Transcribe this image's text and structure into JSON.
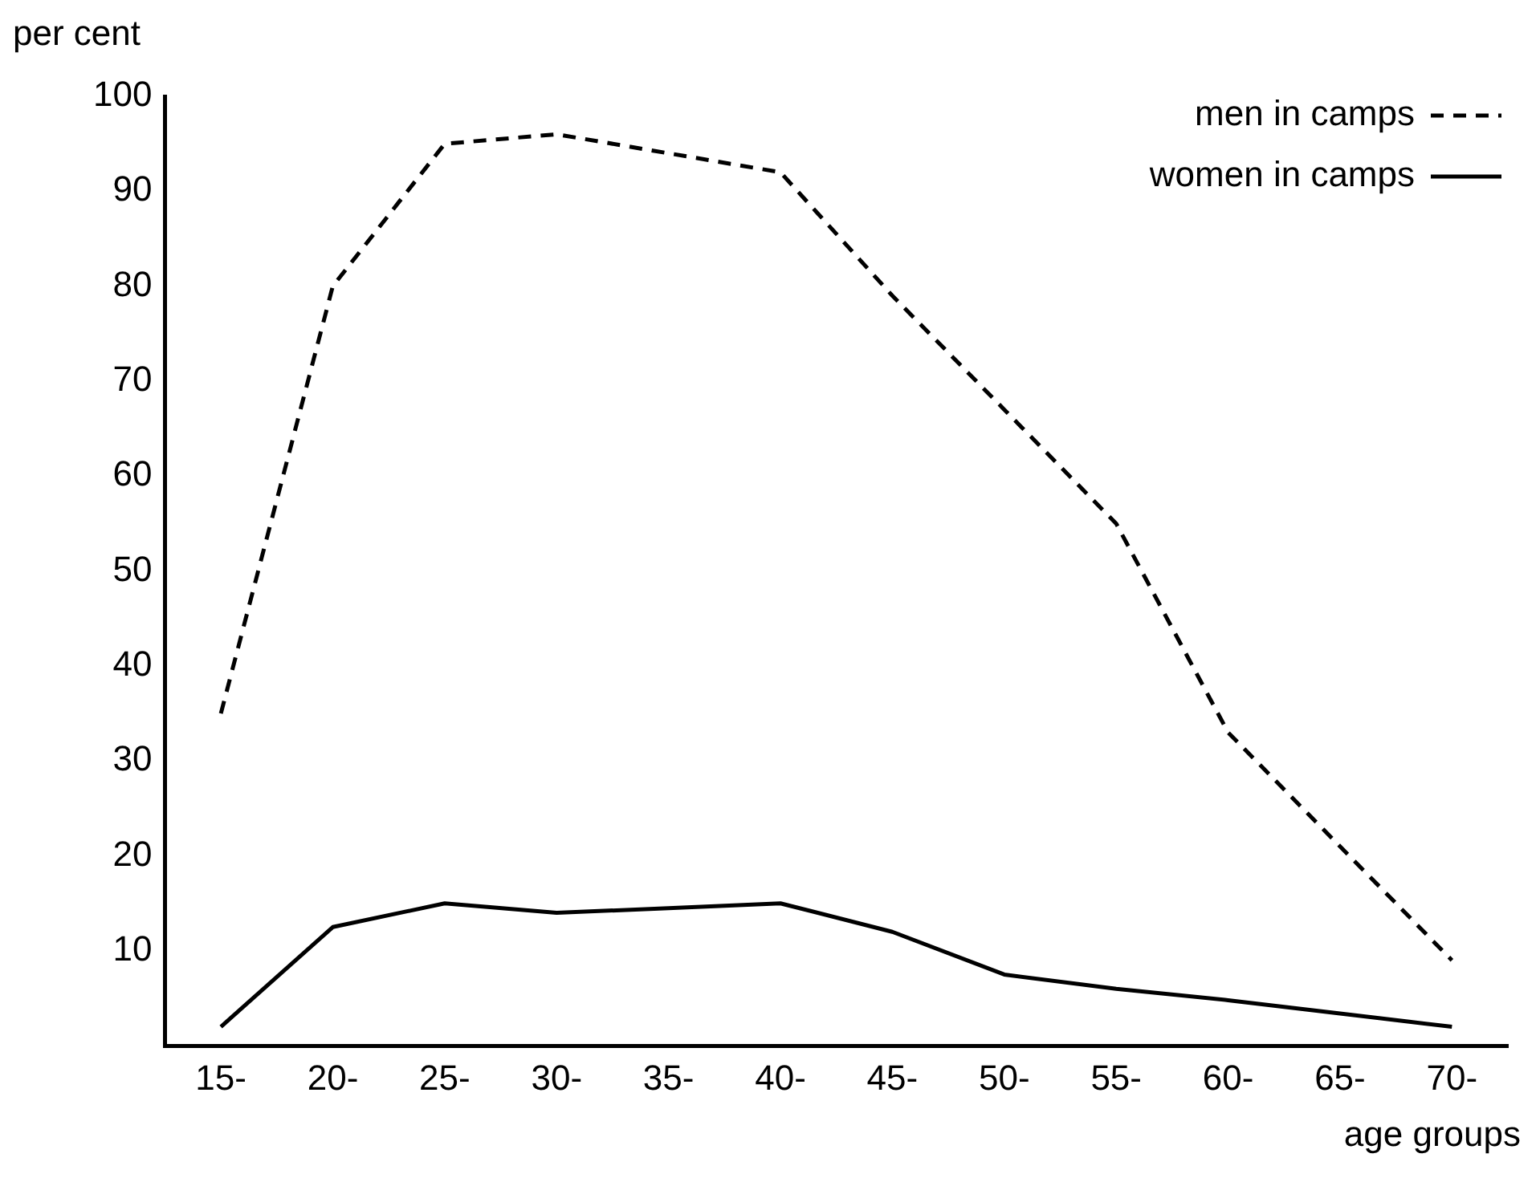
{
  "chart_data": {
    "type": "line",
    "xlabel": "age groups",
    "ylabel": "per cent",
    "categories": [
      "15-",
      "20-",
      "25-",
      "30-",
      "35-",
      "40-",
      "45-",
      "50-",
      "55-",
      "60-",
      "65-",
      "70-"
    ],
    "series": [
      {
        "name": "men in camps",
        "color": "#000000",
        "line_style": "dashed",
        "values": [
          35,
          80,
          95,
          96,
          94,
          92,
          79,
          67,
          55,
          33,
          21,
          9
        ]
      },
      {
        "name": "women in camps",
        "color": "#000000",
        "line_style": "solid",
        "values": [
          2,
          12.5,
          15,
          14,
          14.5,
          15,
          12,
          7.5,
          6,
          4.8,
          3.4,
          2
        ]
      }
    ],
    "ylim": [
      0,
      100
    ],
    "yticks": [
      10,
      20,
      30,
      40,
      50,
      60,
      70,
      80,
      90,
      100
    ],
    "grid": false,
    "legend": "top right",
    "marker": "none"
  }
}
